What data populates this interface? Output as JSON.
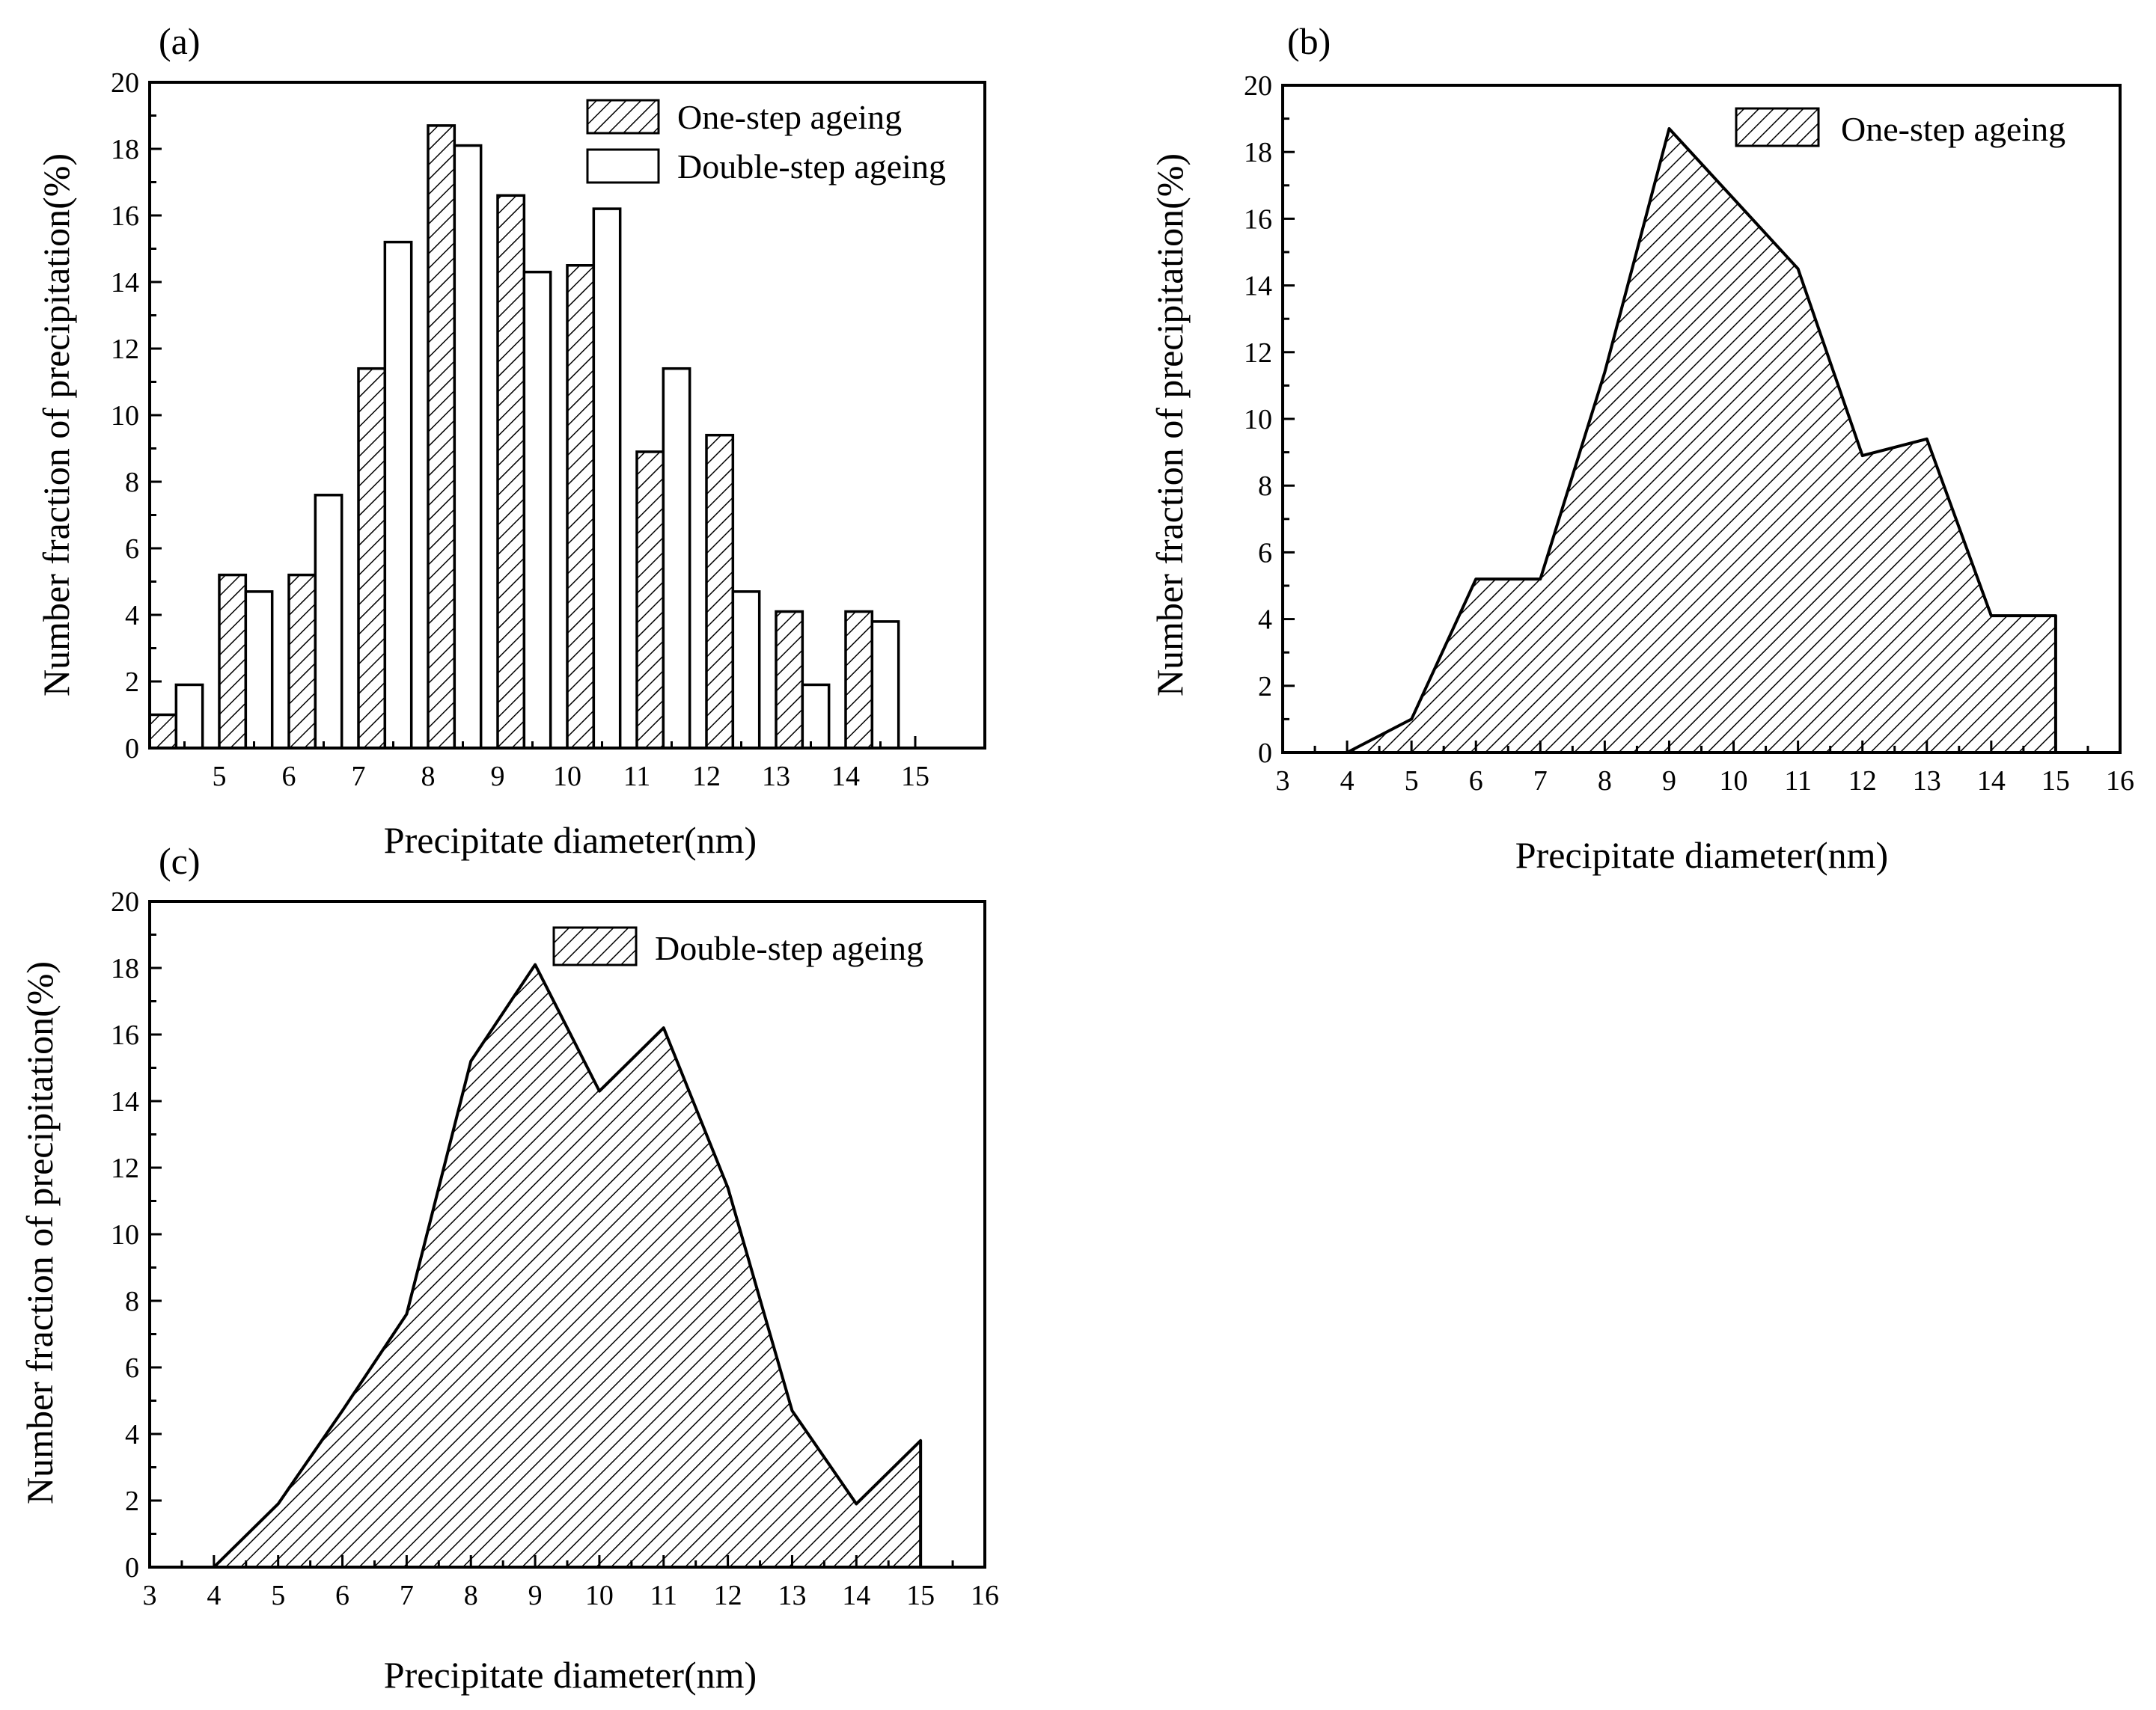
{
  "colors": {
    "ink": "#000000",
    "background": "#ffffff"
  },
  "chart_data": [
    {
      "panel": "(a)",
      "type": "bar",
      "xlabel": "Precipitate diameter(nm)",
      "ylabel": "Number fraction of precipitation(%)",
      "ylim": [
        0,
        20
      ],
      "yticks": [
        0,
        2,
        4,
        6,
        8,
        10,
        12,
        14,
        16,
        18,
        20
      ],
      "xlim": [
        4,
        16
      ],
      "categories": [
        4,
        5,
        6,
        7,
        8,
        9,
        10,
        11,
        12,
        13,
        14
      ],
      "xtick_labels": [
        "5",
        "6",
        "7",
        "8",
        "9",
        "10",
        "11",
        "12",
        "13",
        "14",
        "15"
      ],
      "series": [
        {
          "name": "One-step ageing",
          "style": "hatched",
          "values": [
            1.0,
            5.2,
            5.2,
            11.4,
            18.7,
            16.6,
            14.5,
            8.9,
            9.4,
            4.1,
            4.1
          ]
        },
        {
          "name": "Double-step ageing",
          "style": "open",
          "values": [
            1.9,
            4.7,
            7.6,
            15.2,
            18.1,
            14.3,
            16.2,
            11.4,
            4.7,
            1.9,
            3.8
          ]
        }
      ],
      "legend": "top-right"
    },
    {
      "panel": "(b)",
      "type": "area",
      "xlabel": "Precipitate diameter(nm)",
      "ylabel": "Number fraction of precipitation(%)",
      "xlim": [
        3,
        16
      ],
      "ylim": [
        0,
        20
      ],
      "xticks": [
        3,
        4,
        5,
        6,
        7,
        8,
        9,
        10,
        11,
        12,
        13,
        14,
        15,
        16
      ],
      "yticks": [
        0,
        2,
        4,
        6,
        8,
        10,
        12,
        14,
        16,
        18,
        20
      ],
      "series": [
        {
          "name": "One-step ageing",
          "x": [
            4,
            5,
            6,
            7,
            8,
            9,
            10,
            11,
            12,
            13,
            14,
            15
          ],
          "y": [
            0,
            1.0,
            5.2,
            5.2,
            11.4,
            18.7,
            16.6,
            14.5,
            8.9,
            9.4,
            4.1,
            4.1
          ]
        }
      ],
      "legend": "top-right"
    },
    {
      "panel": "(c)",
      "type": "area",
      "xlabel": "Precipitate diameter(nm)",
      "ylabel": "Number fraction of precipitation(%)",
      "xlim": [
        3,
        16
      ],
      "ylim": [
        0,
        20
      ],
      "xticks": [
        3,
        4,
        5,
        6,
        7,
        8,
        9,
        10,
        11,
        12,
        13,
        14,
        15,
        16
      ],
      "yticks": [
        0,
        2,
        4,
        6,
        8,
        10,
        12,
        14,
        16,
        18,
        20
      ],
      "series": [
        {
          "name": "Double-step ageing",
          "x": [
            4,
            5,
            6,
            7,
            8,
            9,
            10,
            11,
            12,
            13,
            14,
            15
          ],
          "y": [
            0,
            1.9,
            4.7,
            7.6,
            15.2,
            18.1,
            14.3,
            16.2,
            11.4,
            4.7,
            1.9,
            3.8
          ]
        }
      ],
      "legend": "top-right"
    }
  ]
}
